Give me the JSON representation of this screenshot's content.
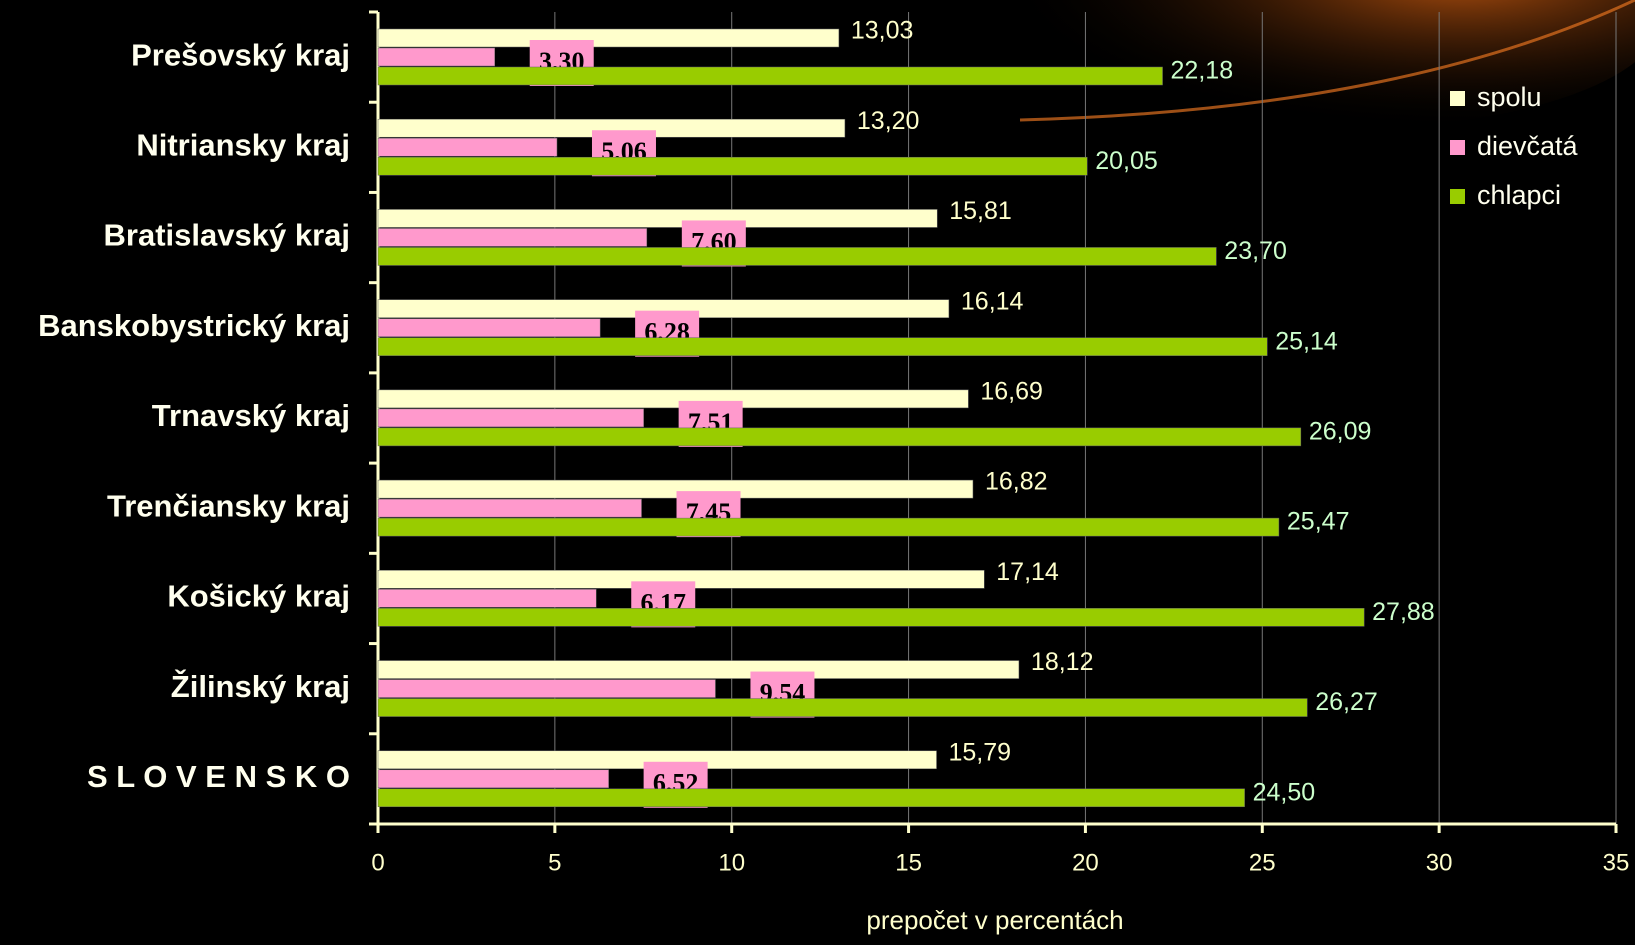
{
  "chart_data": {
    "type": "bar",
    "orientation": "horizontal",
    "categories": [
      "Prešovský kraj",
      "Nitriansky kraj",
      "Bratislavský kraj",
      "Banskobystrický kraj",
      "Trnavský kraj",
      "Trenčiansky kraj",
      "Košický kraj",
      "Žilinský kraj",
      "S L O V E N S K O"
    ],
    "series": [
      {
        "name": "spolu",
        "color": "#ffffcc",
        "values": [
          13.03,
          13.2,
          15.81,
          16.14,
          16.69,
          16.82,
          17.14,
          18.12,
          15.79
        ],
        "value_labels": [
          "13,03",
          "13,20",
          "15,81",
          "16,14",
          "16,69",
          "16,82",
          "17,14",
          "18,12",
          "15,79"
        ]
      },
      {
        "name": "dievčatá",
        "color": "#ff99cc",
        "values": [
          3.3,
          5.06,
          7.6,
          6.28,
          7.51,
          7.45,
          6.17,
          9.54,
          6.52
        ],
        "value_labels": [
          "3,30",
          "5,06",
          "7,60",
          "6,28",
          "7,51",
          "7,45",
          "6,17",
          "9,54",
          "6,52"
        ]
      },
      {
        "name": "chlapci",
        "color": "#99cc00",
        "values": [
          22.18,
          20.05,
          23.7,
          25.14,
          26.09,
          25.47,
          27.88,
          26.27,
          24.5
        ],
        "value_labels": [
          "22,18",
          "20,05",
          "23,70",
          "25,14",
          "26,09",
          "25,47",
          "27,88",
          "26,27",
          "24,50"
        ]
      }
    ],
    "xlabel": "prepočet v percentách",
    "xlim": [
      0,
      35
    ],
    "xticks": [
      0,
      5,
      10,
      15,
      20,
      25,
      30,
      35
    ],
    "grid": true,
    "legend": "upper right"
  }
}
